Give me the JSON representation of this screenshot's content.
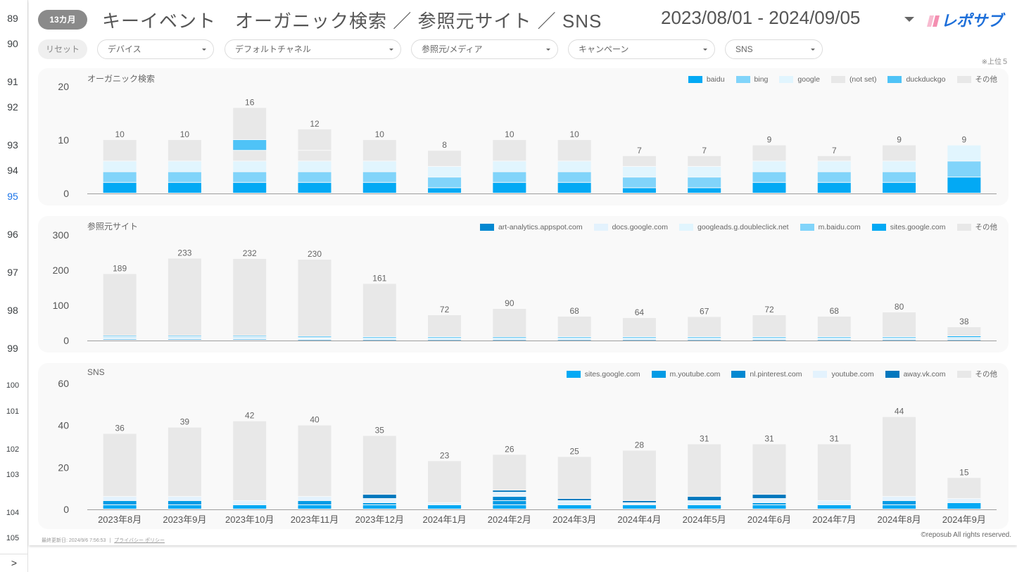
{
  "gutter": {
    "rows": [
      "89",
      "90",
      "91",
      "92",
      "93",
      "94",
      "95",
      "96",
      "97",
      "98",
      "99",
      "100",
      "101",
      "102",
      "103",
      "104",
      "105"
    ],
    "active_row": "95",
    "expand_label": ">"
  },
  "header": {
    "period_badge": "13カ月",
    "title": "キーイベント　オーガニック検索 ／ 参照元サイト ／ SNS",
    "date_range": "2023/08/01 - 2024/09/05",
    "logo_text": "レポサブ"
  },
  "filters": {
    "reset_label": "リセット",
    "items": [
      {
        "label": "デバイス"
      },
      {
        "label": "デフォルトチャネル"
      },
      {
        "label": "参照元/メディア"
      },
      {
        "label": "キャンペーン"
      },
      {
        "label": "SNS"
      }
    ],
    "note": "※上位５"
  },
  "footer": {
    "last_updated": "最終更新日: 2024/9/6 7:56:53",
    "separator": "|",
    "privacy_link": "プライバシー ポリシー",
    "copyright": "©reposub All rights reserved."
  },
  "chart_data": [
    {
      "type": "bar",
      "stacked": true,
      "title": "オーガニック検索",
      "categories": [
        "2023年8月",
        "2023年9月",
        "2023年10月",
        "2023年11月",
        "2023年12月",
        "2024年1月",
        "2024年2月",
        "2024年3月",
        "2024年4月",
        "2024年5月",
        "2024年6月",
        "2024年7月",
        "2024年8月",
        "2024年9月"
      ],
      "ylim": [
        0,
        20
      ],
      "yticks": [
        0,
        10,
        20
      ],
      "show_xlabels": false,
      "totals": [
        10,
        10,
        16,
        12,
        10,
        8,
        10,
        10,
        7,
        7,
        9,
        7,
        9,
        9
      ],
      "series": [
        {
          "name": "baidu",
          "color": "#03a9f4",
          "values": [
            2,
            2,
            2,
            2,
            2,
            1,
            2,
            2,
            1,
            1,
            2,
            2,
            2,
            3
          ]
        },
        {
          "name": "bing",
          "color": "#81d4fa",
          "values": [
            2,
            2,
            2,
            2,
            2,
            2,
            2,
            2,
            2,
            2,
            2,
            2,
            2,
            3
          ]
        },
        {
          "name": "google",
          "color": "#e1f5fe",
          "values": [
            2,
            2,
            2,
            2,
            2,
            2,
            2,
            2,
            2,
            2,
            2,
            2,
            2,
            3
          ]
        },
        {
          "name": "(not set)",
          "color": "#e8e8e8",
          "values": [
            0,
            0,
            2,
            2,
            0,
            0,
            0,
            0,
            0,
            0,
            0,
            0,
            0,
            0
          ]
        },
        {
          "name": "duckduckgo",
          "color": "#4fc3f7",
          "values": [
            0,
            0,
            2,
            0,
            0,
            0,
            0,
            0,
            0,
            0,
            0,
            0,
            0,
            0
          ]
        },
        {
          "name": "その他",
          "color": "#e8e8e8",
          "values": [
            4,
            4,
            6,
            4,
            4,
            3,
            4,
            4,
            2,
            2,
            3,
            1,
            3,
            0
          ]
        }
      ],
      "legend_position": "top-right"
    },
    {
      "type": "bar",
      "stacked": true,
      "title": "参照元サイト",
      "categories": [
        "2023年8月",
        "2023年9月",
        "2023年10月",
        "2023年11月",
        "2023年12月",
        "2024年1月",
        "2024年2月",
        "2024年3月",
        "2024年4月",
        "2024年5月",
        "2024年6月",
        "2024年7月",
        "2024年8月",
        "2024年9月"
      ],
      "ylim": [
        0,
        300
      ],
      "yticks": [
        0,
        100,
        200,
        300
      ],
      "show_xlabels": false,
      "totals": [
        189,
        233,
        232,
        230,
        161,
        72,
        90,
        68,
        64,
        67,
        72,
        68,
        80,
        38
      ],
      "series": [
        {
          "name": "art-analytics.appspot.com",
          "color": "#0288d1",
          "values": [
            3,
            3,
            3,
            2,
            2,
            2,
            2,
            2,
            2,
            2,
            2,
            2,
            2,
            2
          ]
        },
        {
          "name": "docs.google.com",
          "color": "#e3f2fd",
          "values": [
            2,
            2,
            2,
            2,
            2,
            2,
            2,
            2,
            2,
            2,
            2,
            2,
            2,
            2
          ]
        },
        {
          "name": "googleads.g.doubleclick.net",
          "color": "#e1f5fe",
          "values": [
            2,
            2,
            2,
            2,
            2,
            2,
            2,
            2,
            2,
            2,
            2,
            2,
            2,
            2
          ]
        },
        {
          "name": "m.baidu.com",
          "color": "#81d4fa",
          "values": [
            3,
            3,
            3,
            3,
            2,
            2,
            2,
            2,
            2,
            2,
            2,
            2,
            2,
            2
          ]
        },
        {
          "name": "sites.google.com",
          "color": "#03a9f4",
          "values": [
            3,
            3,
            3,
            2,
            2,
            2,
            1,
            2,
            2,
            2,
            2,
            2,
            2,
            4
          ]
        },
        {
          "name": "その他",
          "color": "#e8e8e8",
          "values": [
            176,
            220,
            219,
            219,
            151,
            62,
            81,
            58,
            54,
            57,
            62,
            58,
            70,
            26
          ]
        }
      ],
      "legend_position": "top-right"
    },
    {
      "type": "bar",
      "stacked": true,
      "title": "SNS",
      "categories": [
        "2023年8月",
        "2023年9月",
        "2023年10月",
        "2023年11月",
        "2023年12月",
        "2024年1月",
        "2024年2月",
        "2024年3月",
        "2024年4月",
        "2024年5月",
        "2024年6月",
        "2024年7月",
        "2024年8月",
        "2024年9月"
      ],
      "ylim": [
        0,
        60
      ],
      "yticks": [
        0,
        20,
        40,
        60
      ],
      "show_xlabels": true,
      "totals": [
        36,
        39,
        42,
        40,
        35,
        23,
        26,
        25,
        28,
        31,
        31,
        31,
        44,
        15
      ],
      "series": [
        {
          "name": "sites.google.com",
          "color": "#03a9f4",
          "values": [
            2,
            2,
            2,
            2,
            2,
            2,
            2,
            2,
            2,
            2,
            2,
            2,
            2,
            3
          ]
        },
        {
          "name": "m.youtube.com",
          "color": "#039be5",
          "values": [
            2,
            2,
            0,
            2,
            1,
            0,
            2,
            0,
            0,
            0,
            1,
            0,
            2,
            0
          ]
        },
        {
          "name": "nl.pinterest.com",
          "color": "#0288d1",
          "values": [
            0,
            0,
            0,
            0,
            0,
            0,
            2,
            0,
            0,
            0,
            0,
            0,
            0,
            0
          ]
        },
        {
          "name": "youtube.com",
          "color": "#e3f2fd",
          "values": [
            2,
            2,
            2,
            2,
            2,
            1,
            2,
            2,
            1,
            2,
            2,
            2,
            2,
            2
          ]
        },
        {
          "name": "away.vk.com",
          "color": "#0277bd",
          "values": [
            0,
            0,
            0,
            0,
            2,
            0,
            1,
            1,
            1,
            2,
            2,
            0,
            0,
            0
          ]
        },
        {
          "name": "その他",
          "color": "#e8e8e8",
          "values": [
            30,
            33,
            38,
            34,
            28,
            20,
            17,
            20,
            24,
            25,
            24,
            27,
            38,
            10
          ]
        }
      ],
      "legend_position": "top-right"
    }
  ]
}
